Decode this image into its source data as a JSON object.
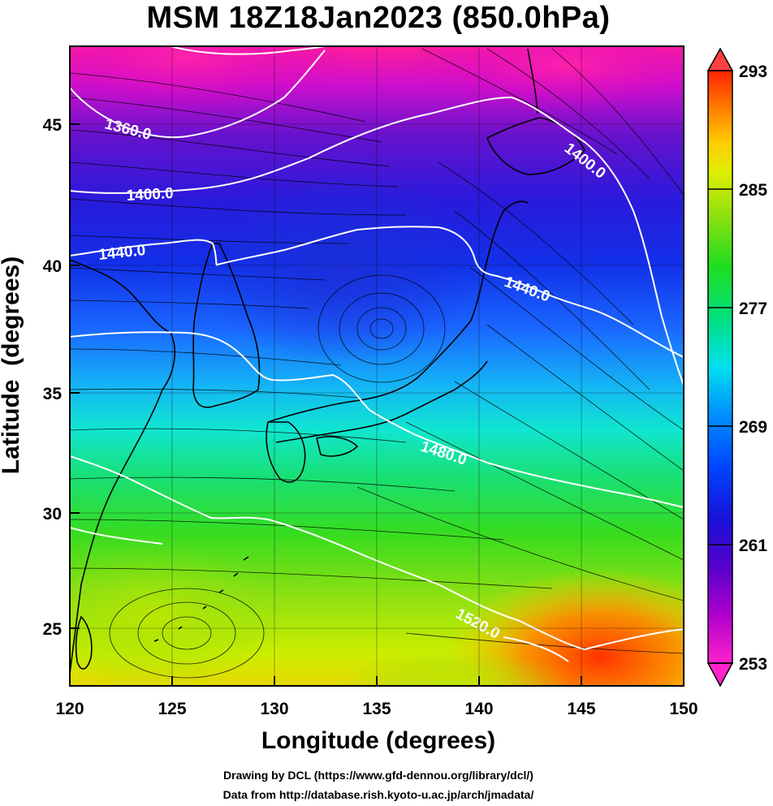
{
  "title": "MSM 18Z18Jan2023 (850.0hPa)",
  "axes": {
    "xlabel": "Longitude (degrees)",
    "ylabel": "Latitude  (degrees)",
    "x_ticks": [
      "120",
      "125",
      "130",
      "135",
      "140",
      "145",
      "150"
    ],
    "y_ticks": [
      "25",
      "30",
      "35",
      "40",
      "45"
    ],
    "xlim": [
      120,
      150
    ],
    "ylim": [
      22.4,
      47.6
    ]
  },
  "colorbar": {
    "labels": [
      "293",
      "285",
      "277",
      "269",
      "261",
      "253"
    ],
    "range": [
      253,
      293
    ],
    "colors": [
      "#ff33cc",
      "#cc00cc",
      "#7a00cc",
      "#3300cc",
      "#0022ee",
      "#0066ff",
      "#00b0ff",
      "#00e6e6",
      "#00e08a",
      "#22dd22",
      "#77e010",
      "#ccee00",
      "#ffdd00",
      "#ff9900",
      "#ff4400",
      "#ff1100"
    ]
  },
  "contours": {
    "labels": [
      "1360.0",
      "1400.0",
      "1440.0",
      "1400.0",
      "1440.0",
      "1480.0",
      "1520.0"
    ]
  },
  "credits": {
    "line1": "Drawing by DCL (https://www.gfd-dennou.org/library/dcl/)",
    "line2": "Data from http://database.rish.kyoto-u.ac.jp/arch/jmadata/"
  }
}
